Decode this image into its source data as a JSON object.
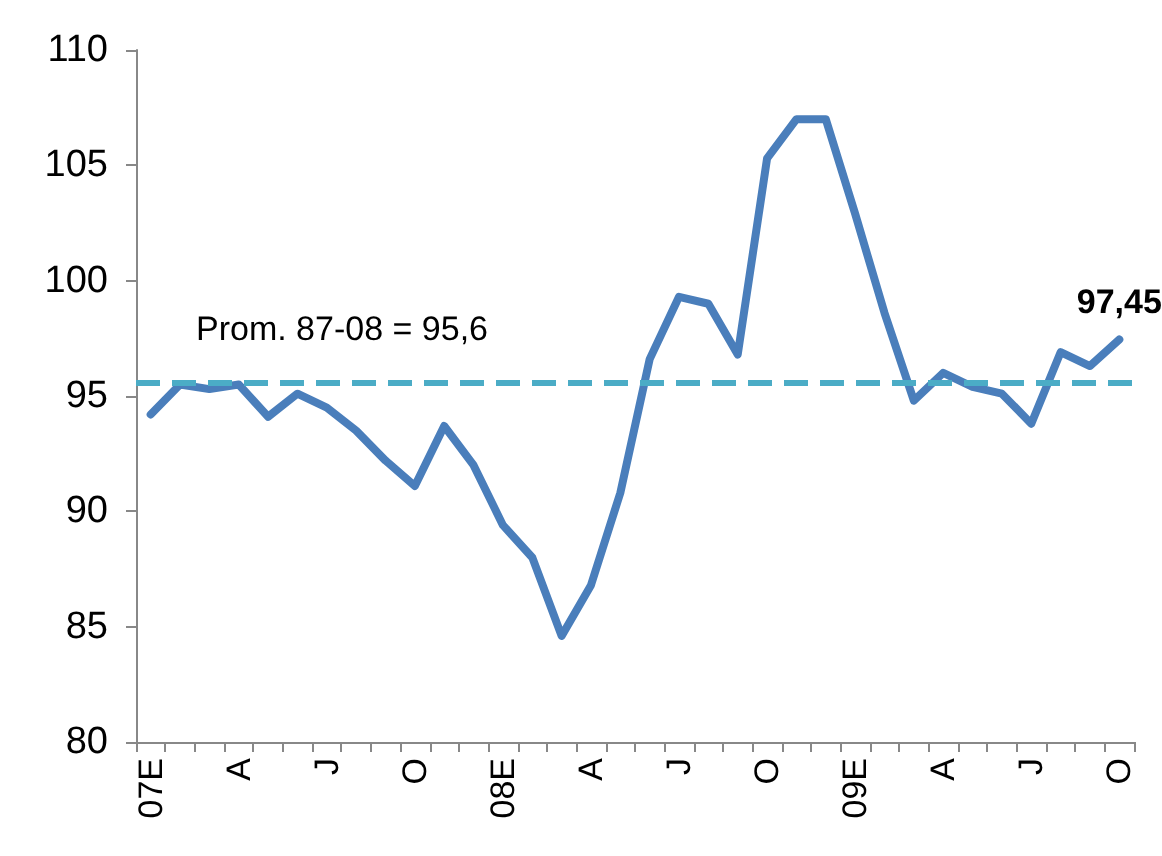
{
  "chart_data": {
    "type": "line",
    "categories": [
      "07E",
      null,
      null,
      "A",
      null,
      null,
      "J",
      null,
      null,
      "O",
      null,
      null,
      "08E",
      null,
      null,
      "A",
      null,
      null,
      "J",
      null,
      null,
      "O",
      null,
      null,
      "09E",
      null,
      null,
      "A",
      null,
      null,
      "J",
      null,
      null,
      "O"
    ],
    "series": [
      {
        "color": "#4a7ebb",
        "values": [
          94.2,
          95.5,
          95.3,
          95.5,
          94.1,
          95.1,
          94.5,
          93.5,
          92.2,
          91.1,
          93.7,
          92.0,
          89.4,
          88.0,
          84.6,
          86.8,
          90.8,
          96.6,
          99.3,
          99.0,
          96.8,
          105.3,
          107.0,
          107.0,
          102.9,
          98.6,
          94.8,
          96.0,
          95.4,
          95.1,
          93.8,
          96.9,
          96.3,
          97.45
        ],
        "value_labels": [
          null,
          null,
          null,
          null,
          null,
          null,
          null,
          null,
          null,
          null,
          null,
          null,
          null,
          null,
          null,
          null,
          null,
          null,
          null,
          null,
          null,
          null,
          null,
          null,
          null,
          null,
          null,
          null,
          null,
          null,
          null,
          null,
          null,
          "97,45"
        ]
      }
    ],
    "ylim": [
      80,
      110
    ],
    "yticks": [
      80,
      85,
      90,
      95,
      100,
      105,
      110
    ],
    "ref_lines": [
      {
        "axis": "y",
        "value": 95.6,
        "label": "Prom. 87-08 = 95,6",
        "color": "#4bacc6",
        "line_style": "dashed"
      }
    ],
    "grid": false,
    "marker": "none",
    "line_style": "solid"
  }
}
